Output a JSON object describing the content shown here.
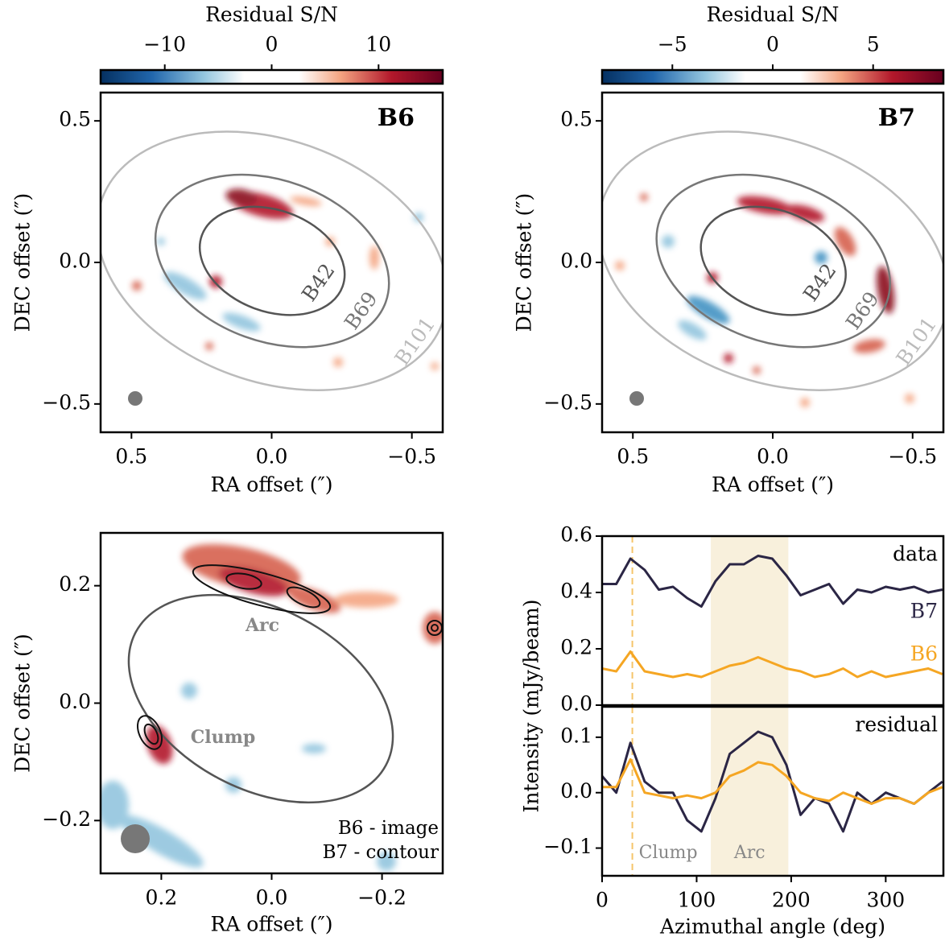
{
  "chart_data": [
    {
      "type": "image",
      "label": "B6",
      "ring_labels": [
        "B42",
        "B69",
        "B101"
      ],
      "colorbar": {
        "label": "Residual S/N",
        "clim": [
          -16,
          16
        ],
        "ticks": [
          {
            "value": -10,
            "label": "−10"
          },
          0,
          10
        ]
      },
      "xlabel": "RA offset  (″)",
      "ylabel": "DEC offset  (″)",
      "xlim": [
        0.61,
        -0.61
      ],
      "ylim": [
        -0.6,
        0.6
      ],
      "xticks": [
        0.5,
        {
          "value": 0,
          "label": "0.0"
        },
        {
          "value": -0.5,
          "label": "−0.5"
        }
      ],
      "yticks": [
        {
          "value": -0.5,
          "label": "−0.5"
        },
        {
          "value": 0,
          "label": "0.0"
        },
        0.5
      ]
    },
    {
      "type": "image",
      "label": "B7",
      "ring_labels": [
        "B42",
        "B69",
        "B101"
      ],
      "colorbar": {
        "label": "Residual S/N",
        "clim": [
          -8.5,
          8.5
        ],
        "ticks": [
          {
            "value": -5,
            "label": "−5"
          },
          0,
          5
        ]
      },
      "xlabel": "RA offset  (″)",
      "ylabel": "DEC offset  (″)",
      "xlim": [
        0.61,
        -0.61
      ],
      "ylim": [
        -0.6,
        0.6
      ],
      "xticks": [
        0.5,
        {
          "value": 0,
          "label": "0.0"
        },
        {
          "value": -0.5,
          "label": "−0.5"
        }
      ],
      "yticks": [
        {
          "value": -0.5,
          "label": "−0.5"
        },
        {
          "value": 0,
          "label": "0.0"
        },
        0.5
      ]
    },
    {
      "type": "image",
      "annotations": [
        "Arc",
        "Clump"
      ],
      "legend_text": [
        "B6 - image",
        "B7 - contour"
      ],
      "xlabel": "RA offset  (″)",
      "ylabel": "DEC offset  (″)",
      "xlim": [
        0.31,
        -0.31
      ],
      "ylim": [
        -0.29,
        0.29
      ],
      "xticks": [
        0.2,
        {
          "value": 0,
          "label": "0.0"
        },
        {
          "value": -0.2,
          "label": "−0.2"
        }
      ],
      "yticks": [
        {
          "value": -0.2,
          "label": "−0.2"
        },
        {
          "value": 0,
          "label": "0.0"
        },
        0.2
      ]
    },
    {
      "type": "line",
      "label": "data",
      "ylabel": "Intensity (mJy/beam)",
      "x": [
        0,
        15,
        30,
        45,
        60,
        75,
        90,
        105,
        120,
        135,
        150,
        165,
        180,
        195,
        210,
        225,
        240,
        255,
        270,
        285,
        300,
        315,
        330,
        345,
        360
      ],
      "series": [
        {
          "name": "B7",
          "color": "#2b2645",
          "values": [
            0.43,
            0.43,
            0.52,
            0.48,
            0.41,
            0.42,
            0.38,
            0.35,
            0.44,
            0.5,
            0.5,
            0.53,
            0.52,
            0.46,
            0.39,
            0.41,
            0.43,
            0.36,
            0.41,
            0.4,
            0.42,
            0.41,
            0.42,
            0.4,
            0.41
          ]
        },
        {
          "name": "B6",
          "color": "#f5a623",
          "values": [
            0.13,
            0.12,
            0.19,
            0.12,
            0.11,
            0.1,
            0.11,
            0.1,
            0.12,
            0.14,
            0.15,
            0.17,
            0.15,
            0.13,
            0.12,
            0.1,
            0.11,
            0.13,
            0.1,
            0.12,
            0.1,
            0.11,
            0.12,
            0.13,
            0.11
          ]
        }
      ],
      "clump_x": 32,
      "arc_span": [
        115,
        197
      ],
      "xlim": [
        0,
        361
      ],
      "ylim": [
        0,
        0.6
      ],
      "yticks": [
        {
          "value": 0,
          "label": "0.0"
        },
        0.2,
        0.4,
        0.6
      ]
    },
    {
      "type": "line",
      "label": "residual",
      "xlabel": "Azimuthal angle (deg)",
      "x": [
        0,
        15,
        30,
        45,
        60,
        75,
        90,
        105,
        120,
        135,
        150,
        165,
        180,
        195,
        210,
        225,
        240,
        255,
        270,
        285,
        300,
        315,
        330,
        345,
        360
      ],
      "series": [
        {
          "name": "B7",
          "color": "#2b2645",
          "values": [
            0.03,
            0.0,
            0.09,
            0.02,
            0.0,
            0.0,
            -0.05,
            -0.07,
            -0.01,
            0.07,
            0.09,
            0.11,
            0.1,
            0.05,
            -0.04,
            -0.01,
            -0.02,
            -0.07,
            0.0,
            -0.02,
            0.0,
            -0.01,
            -0.02,
            0.0,
            0.02
          ]
        },
        {
          "name": "B6",
          "color": "#f5a623",
          "values": [
            0.01,
            0.01,
            0.06,
            0.0,
            -0.005,
            -0.01,
            -0.005,
            -0.01,
            0.0,
            0.03,
            0.04,
            0.055,
            0.05,
            0.03,
            0.0,
            -0.01,
            -0.015,
            0.0,
            -0.01,
            -0.02,
            -0.01,
            -0.01,
            -0.02,
            0.0,
            0.01
          ]
        }
      ],
      "annotations": [
        {
          "text": "Clump",
          "x": 32
        },
        {
          "text": "Arc",
          "x": [
            115,
            197
          ]
        }
      ],
      "xlim": [
        0,
        361
      ],
      "ylim": [
        -0.15,
        0.155
      ],
      "xticks": [
        0,
        100,
        200,
        300
      ],
      "yticks": [
        {
          "value": -0.1,
          "label": "−0.1"
        },
        {
          "value": 0,
          "label": "0.0"
        },
        0.1
      ]
    }
  ]
}
